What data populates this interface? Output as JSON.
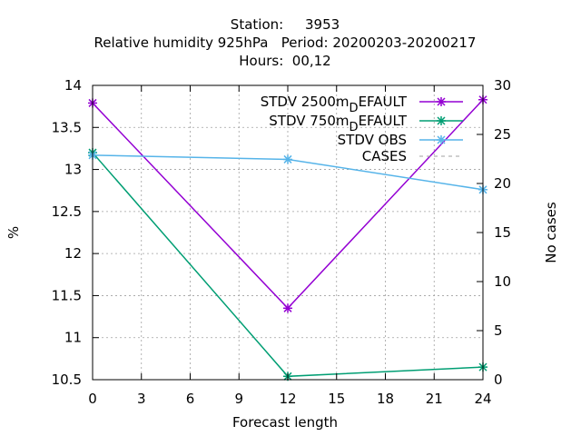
{
  "chart_data": {
    "type": "line",
    "title_lines": [
      "Station:     3953",
      "Relative humidity 925hPa   Period: 20200203-20200217",
      "Hours:  00,12"
    ],
    "xlabel": "Forecast length",
    "ylabel": "%",
    "y2label": "No cases",
    "xlim": [
      0,
      24
    ],
    "ylim": [
      10.5,
      14
    ],
    "y2lim": [
      0,
      30
    ],
    "xticks": [
      "0",
      "3",
      "6",
      "9",
      "12",
      "15",
      "18",
      "21",
      "24"
    ],
    "yticks": [
      "10.5",
      "11",
      "11.5",
      "12",
      "12.5",
      "13",
      "13.5",
      "14"
    ],
    "y2ticks": [
      "0",
      "5",
      "10",
      "15",
      "20",
      "25",
      "30"
    ],
    "grid": true,
    "legend_position": "top-right",
    "series": [
      {
        "name": "STDV 2500m_DEFAULT",
        "name_main": "STDV 2500m",
        "name_sub": "D",
        "name_tail": "EFAULT",
        "color": "#9400d3",
        "axis": "y",
        "x": [
          0,
          12,
          24
        ],
        "values": [
          13.79,
          11.35,
          13.83
        ]
      },
      {
        "name": "STDV 750m_DEFAULT",
        "name_main": "STDV 750m",
        "name_sub": "D",
        "name_tail": "EFAULT",
        "color": "#009e73",
        "axis": "y",
        "x": [
          0,
          12,
          24
        ],
        "values": [
          13.2,
          10.54,
          10.65
        ]
      },
      {
        "name": "STDV OBS",
        "color": "#56b4e9",
        "axis": "y",
        "x": [
          0,
          12,
          24
        ],
        "values": [
          13.17,
          13.12,
          12.76
        ]
      },
      {
        "name": "CASES",
        "color": "#a0a0a0",
        "axis": "y2",
        "dashed": true,
        "x": [
          0,
          12,
          24
        ],
        "values": [
          30,
          30,
          30
        ]
      }
    ]
  }
}
